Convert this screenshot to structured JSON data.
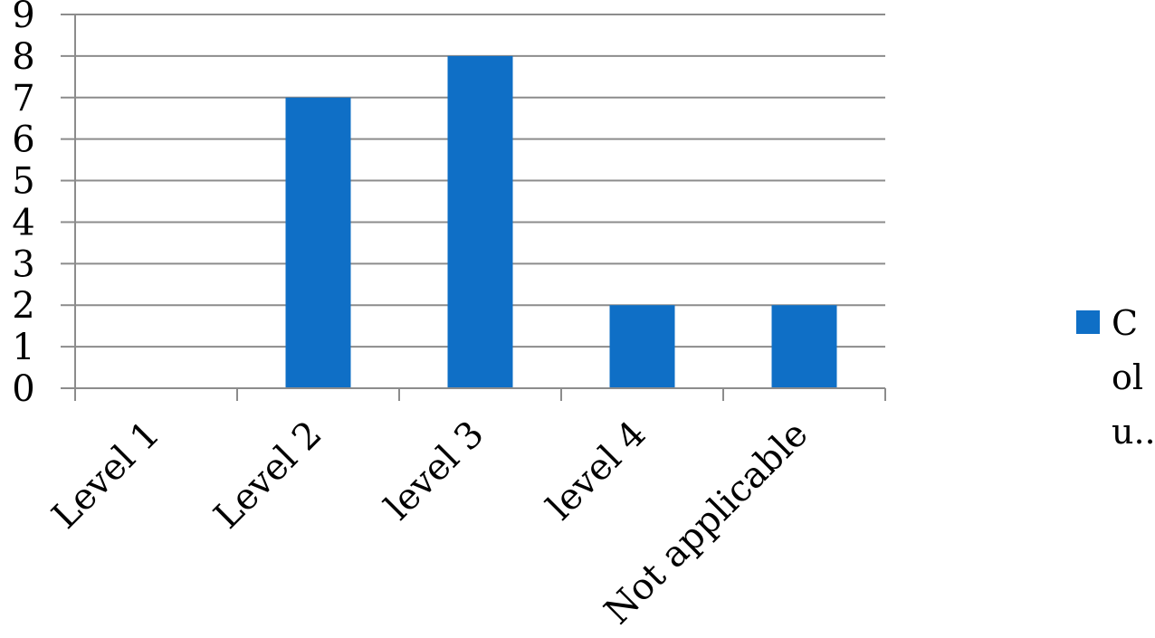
{
  "chart_data": {
    "type": "bar",
    "categories": [
      "Level 1",
      "Level 2",
      "level 3",
      "level 4",
      "Not applicable"
    ],
    "series": [
      {
        "values": [
          0,
          7,
          8,
          2,
          2
        ],
        "color": "#0F6FC6"
      }
    ],
    "ylim": [
      0,
      9
    ],
    "yticks": [
      0,
      1,
      2,
      3,
      4,
      5,
      6,
      7,
      8,
      9
    ],
    "grid": true,
    "legend_position": "right",
    "legend_lines": [
      "C",
      "ol",
      "u..."
    ]
  }
}
